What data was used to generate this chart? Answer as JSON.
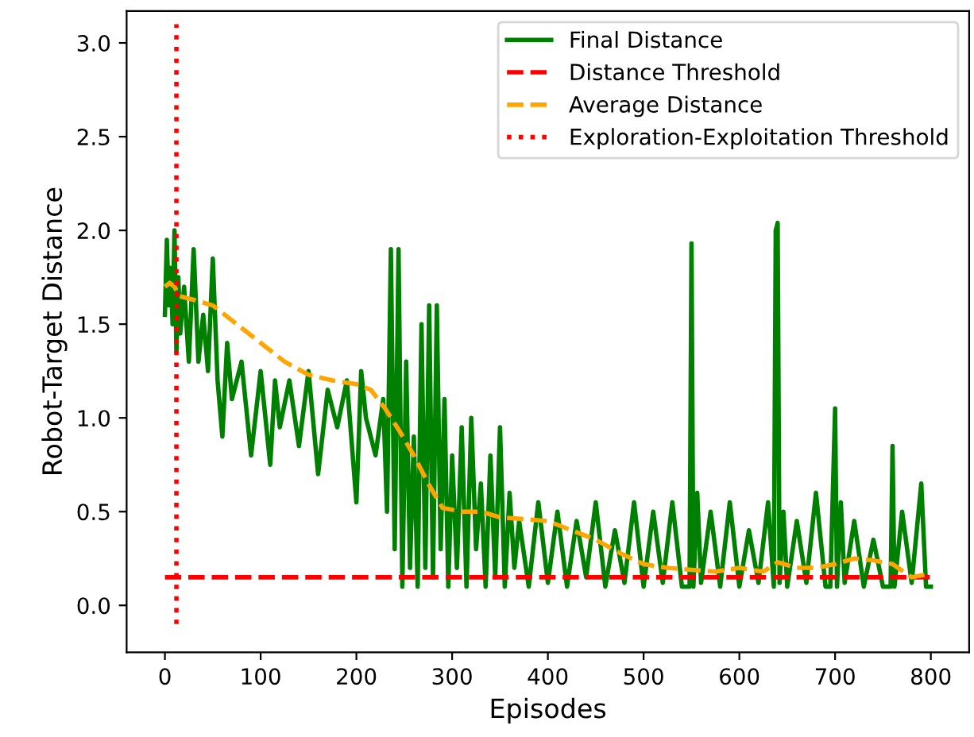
{
  "chart_data": {
    "type": "line",
    "xlabel": "Episodes",
    "ylabel": "Robot-Target Distance",
    "xlim": [
      -40,
      840
    ],
    "ylim": [
      -0.25,
      3.17
    ],
    "xticks": [
      0,
      100,
      200,
      300,
      400,
      500,
      600,
      700,
      800
    ],
    "yticks": [
      {
        "value": 0,
        "label": "0.0"
      },
      {
        "value": 0.5,
        "label": "0.5"
      },
      {
        "value": 1,
        "label": "1.0"
      },
      {
        "value": 1.5,
        "label": "1.5"
      },
      {
        "value": 2,
        "label": "2.0"
      },
      {
        "value": 2.5,
        "label": "2.5"
      },
      {
        "value": 3,
        "label": "3.0"
      }
    ],
    "grid": false,
    "legend": "top right",
    "series": [
      {
        "name": "Final Distance",
        "color": "#008000",
        "line_style": "solid",
        "x": [
          0,
          2,
          4,
          6,
          8,
          10,
          12,
          14,
          16,
          20,
          25,
          30,
          35,
          40,
          45,
          50,
          55,
          60,
          65,
          70,
          80,
          90,
          100,
          105,
          110,
          115,
          120,
          130,
          140,
          150,
          160,
          170,
          180,
          190,
          200,
          205,
          210,
          220,
          228,
          232,
          236,
          240,
          244,
          248,
          252,
          256,
          260,
          264,
          268,
          272,
          276,
          280,
          284,
          288,
          292,
          296,
          300,
          305,
          310,
          315,
          320,
          325,
          330,
          335,
          340,
          345,
          350,
          355,
          360,
          365,
          370,
          380,
          390,
          400,
          410,
          420,
          430,
          440,
          450,
          460,
          470,
          480,
          490,
          500,
          510,
          520,
          530,
          540,
          548,
          550,
          552,
          556,
          560,
          570,
          580,
          590,
          600,
          610,
          620,
          630,
          636,
          638,
          640,
          642,
          646,
          650,
          660,
          670,
          680,
          690,
          695,
          700,
          702,
          706,
          710,
          720,
          730,
          740,
          750,
          758,
          760,
          762,
          770,
          780,
          790,
          795,
          800
        ],
        "values": [
          1.55,
          1.95,
          1.6,
          1.8,
          1.5,
          2.0,
          1.35,
          1.75,
          1.45,
          1.7,
          1.3,
          1.9,
          1.3,
          1.55,
          1.25,
          1.85,
          1.2,
          0.9,
          1.4,
          1.1,
          1.3,
          0.8,
          1.25,
          1.0,
          0.75,
          1.2,
          0.95,
          1.2,
          0.85,
          1.25,
          0.7,
          1.15,
          0.95,
          1.2,
          0.55,
          1.25,
          1.0,
          0.8,
          1.1,
          0.5,
          1.9,
          0.3,
          1.9,
          0.1,
          1.3,
          0.2,
          0.9,
          0.1,
          1.5,
          0.2,
          1.6,
          0.15,
          1.6,
          0.3,
          1.1,
          0.1,
          0.8,
          0.2,
          0.95,
          0.1,
          1.0,
          0.3,
          0.65,
          0.1,
          0.8,
          0.15,
          0.95,
          0.1,
          0.6,
          0.2,
          0.45,
          0.1,
          0.55,
          0.12,
          0.5,
          0.1,
          0.45,
          0.15,
          0.55,
          0.1,
          0.4,
          0.12,
          0.55,
          0.1,
          0.5,
          0.12,
          0.55,
          0.1,
          0.1,
          1.93,
          0.1,
          0.6,
          0.12,
          0.5,
          0.1,
          0.55,
          0.1,
          0.4,
          0.12,
          0.55,
          0.1,
          2.0,
          2.04,
          0.12,
          0.5,
          0.1,
          0.45,
          0.12,
          0.6,
          0.1,
          0.1,
          1.05,
          0.1,
          0.55,
          0.12,
          0.45,
          0.1,
          0.35,
          0.1,
          0.1,
          0.85,
          0.1,
          0.5,
          0.12,
          0.65,
          0.1,
          0.1
        ]
      },
      {
        "name": "Distance Threshold",
        "color": "#ff0000",
        "line_style": "dashed",
        "x": [
          0,
          800
        ],
        "values": [
          0.15,
          0.15
        ]
      },
      {
        "name": "Average Distance",
        "color": "#ffa500",
        "line_style": "dashed",
        "x": [
          0,
          5,
          10,
          15,
          30,
          50,
          75,
          100,
          125,
          150,
          175,
          200,
          215,
          230,
          245,
          260,
          275,
          290,
          310,
          330,
          350,
          375,
          400,
          425,
          450,
          475,
          500,
          525,
          550,
          575,
          600,
          625,
          640,
          660,
          680,
          700,
          720,
          740,
          760,
          780,
          800
        ],
        "values": [
          1.7,
          1.72,
          1.7,
          1.65,
          1.63,
          1.6,
          1.5,
          1.4,
          1.3,
          1.23,
          1.2,
          1.18,
          1.15,
          1.05,
          0.93,
          0.8,
          0.65,
          0.52,
          0.5,
          0.5,
          0.47,
          0.46,
          0.45,
          0.4,
          0.35,
          0.28,
          0.22,
          0.2,
          0.19,
          0.18,
          0.2,
          0.18,
          0.23,
          0.2,
          0.2,
          0.22,
          0.25,
          0.24,
          0.22,
          0.15,
          0.17
        ]
      },
      {
        "name": "Exploration-Exploitation Threshold",
        "color": "#ff0000",
        "line_style": "dotted",
        "x": [
          12,
          12
        ],
        "values": [
          -0.1,
          3.1
        ]
      }
    ]
  }
}
